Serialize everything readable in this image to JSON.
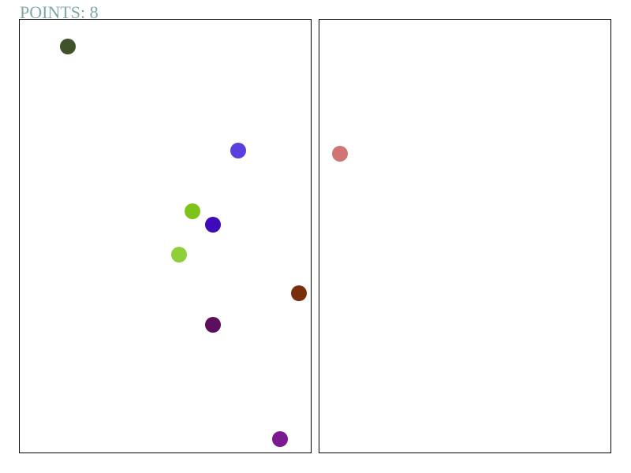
{
  "score": {
    "label": "POINTS: 8"
  },
  "colors": {
    "score_text": "#7fa9a9",
    "panel_border": "#000000",
    "background": "#ffffff"
  },
  "left_panel": {
    "dots": [
      {
        "color": "#3f5229"
      },
      {
        "color": "#5a3fe0"
      },
      {
        "color": "#7fc31a"
      },
      {
        "color": "#3d0cb8"
      },
      {
        "color": "#8fcf3a"
      },
      {
        "color": "#7a2f0c"
      },
      {
        "color": "#5c0f5e"
      },
      {
        "color": "#7c1890"
      }
    ]
  },
  "right_panel": {
    "dots": [
      {
        "color": "#d07474"
      }
    ]
  }
}
